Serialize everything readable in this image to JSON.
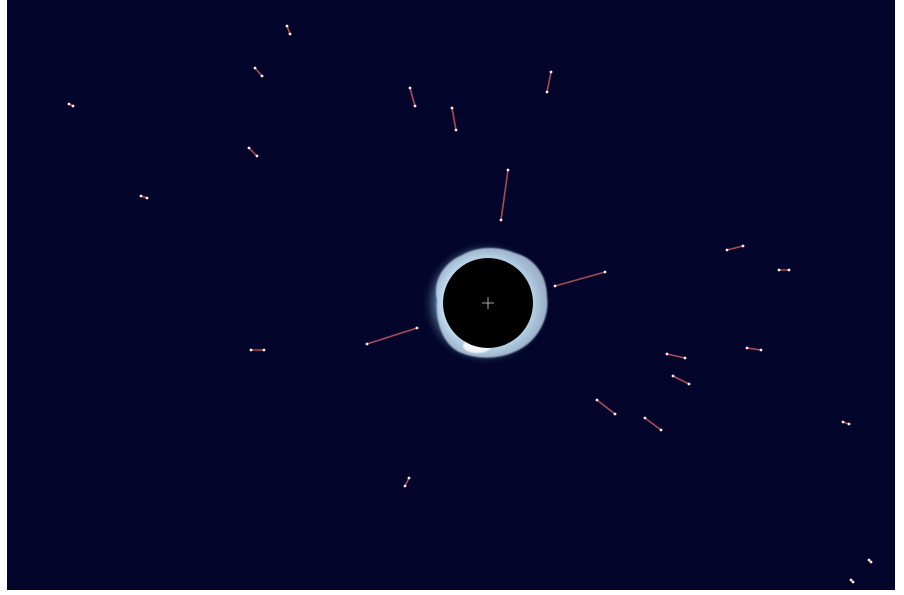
{
  "scene": {
    "subject": "eclipse-with-star-trails",
    "colors": {
      "sky": "#04052a",
      "border": "#ffffff",
      "moon": "#000000",
      "corona_inner": "#e8f6ff",
      "corona_outer": "#4e86b0",
      "trail": "#c4575d",
      "star_core": "#ffe9e1",
      "crosshair": "#a7a7a7"
    },
    "icons": [
      "crosshair-icon"
    ]
  }
}
